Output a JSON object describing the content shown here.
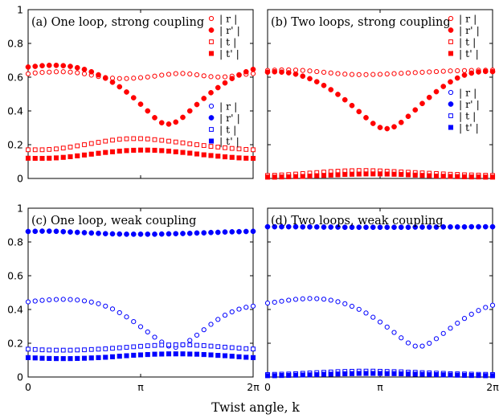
{
  "figure": {
    "xlabel": "Twist angle, k"
  },
  "chart_data": [
    {
      "type": "scatter",
      "title": "(a) One loop, strong coupling",
      "ylim": [
        0,
        1
      ],
      "yticks": [
        "0",
        "0.2",
        "0.4",
        "0.6",
        "0.8",
        "1"
      ],
      "xlim": [
        0,
        6.2832
      ],
      "xticks": [
        "0",
        "π",
        "2π"
      ],
      "color": "#ff0000",
      "legend_position": "top-right",
      "series": [
        {
          "name": "| r |",
          "marker": "open-circle",
          "values": [
            0.62,
            0.625,
            0.628,
            0.63,
            0.632,
            0.632,
            0.63,
            0.626,
            0.62,
            0.612,
            0.604,
            0.598,
            0.594,
            0.592,
            0.592,
            0.594,
            0.597,
            0.601,
            0.606,
            0.612,
            0.617,
            0.621,
            0.622,
            0.619,
            0.614,
            0.608,
            0.603,
            0.601,
            0.602,
            0.606,
            0.611,
            0.617,
            0.621
          ]
        },
        {
          "name": "| r' |",
          "marker": "filled-circle",
          "values": [
            0.66,
            0.664,
            0.668,
            0.67,
            0.67,
            0.668,
            0.664,
            0.656,
            0.646,
            0.632,
            0.614,
            0.594,
            0.57,
            0.543,
            0.512,
            0.478,
            0.44,
            0.4,
            0.36,
            0.33,
            0.322,
            0.334,
            0.362,
            0.4,
            0.438,
            0.474,
            0.508,
            0.538,
            0.566,
            0.592,
            0.614,
            0.632,
            0.646
          ]
        },
        {
          "name": "| t |",
          "marker": "open-square",
          "values": [
            0.17,
            0.17,
            0.17,
            0.172,
            0.175,
            0.18,
            0.186,
            0.193,
            0.2,
            0.207,
            0.214,
            0.221,
            0.227,
            0.232,
            0.235,
            0.236,
            0.236,
            0.234,
            0.23,
            0.226,
            0.221,
            0.216,
            0.211,
            0.205,
            0.2,
            0.195,
            0.19,
            0.186,
            0.182,
            0.178,
            0.175,
            0.172,
            0.17
          ]
        },
        {
          "name": "| t' |",
          "marker": "filled-square",
          "values": [
            0.12,
            0.119,
            0.119,
            0.12,
            0.122,
            0.125,
            0.129,
            0.134,
            0.139,
            0.144,
            0.149,
            0.154,
            0.158,
            0.162,
            0.165,
            0.167,
            0.168,
            0.168,
            0.167,
            0.165,
            0.162,
            0.158,
            0.154,
            0.15,
            0.145,
            0.14,
            0.136,
            0.132,
            0.128,
            0.125,
            0.122,
            0.12,
            0.119
          ]
        }
      ]
    },
    {
      "type": "scatter",
      "title": "(b) Two loops, strong coupling",
      "ylim": [
        0,
        1
      ],
      "yticks": [
        "0",
        "0.2",
        "0.4",
        "0.6",
        "0.8",
        "1"
      ],
      "xlim": [
        0,
        6.2832
      ],
      "xticks": [
        "0",
        "π",
        "2π"
      ],
      "color": "#ff0000",
      "legend_position": "top-right",
      "series": [
        {
          "name": "| r |",
          "marker": "open-circle",
          "values": [
            0.64,
            0.642,
            0.643,
            0.643,
            0.642,
            0.64,
            0.637,
            0.633,
            0.629,
            0.625,
            0.621,
            0.618,
            0.616,
            0.615,
            0.615,
            0.616,
            0.617,
            0.619,
            0.621,
            0.623,
            0.625,
            0.627,
            0.629,
            0.631,
            0.633,
            0.635,
            0.637,
            0.638,
            0.639,
            0.64,
            0.641,
            0.641,
            0.642
          ]
        },
        {
          "name": "| r' |",
          "marker": "filled-circle",
          "values": [
            0.63,
            0.632,
            0.63,
            0.626,
            0.618,
            0.606,
            0.591,
            0.573,
            0.551,
            0.526,
            0.498,
            0.466,
            0.432,
            0.396,
            0.36,
            0.326,
            0.302,
            0.295,
            0.306,
            0.332,
            0.368,
            0.406,
            0.444,
            0.48,
            0.514,
            0.545,
            0.572,
            0.595,
            0.612,
            0.624,
            0.631,
            0.634,
            0.633
          ]
        },
        {
          "name": "| t |",
          "marker": "open-square",
          "values": [
            0.018,
            0.019,
            0.021,
            0.023,
            0.026,
            0.029,
            0.032,
            0.035,
            0.038,
            0.041,
            0.043,
            0.045,
            0.046,
            0.047,
            0.047,
            0.046,
            0.045,
            0.043,
            0.041,
            0.039,
            0.037,
            0.035,
            0.033,
            0.031,
            0.029,
            0.027,
            0.025,
            0.024,
            0.022,
            0.021,
            0.02,
            0.019,
            0.018
          ]
        },
        {
          "name": "| t' |",
          "marker": "filled-square",
          "values": [
            0.008,
            0.008,
            0.009,
            0.01,
            0.011,
            0.012,
            0.014,
            0.016,
            0.018,
            0.02,
            0.022,
            0.024,
            0.025,
            0.026,
            0.027,
            0.027,
            0.027,
            0.026,
            0.025,
            0.024,
            0.022,
            0.02,
            0.018,
            0.016,
            0.014,
            0.013,
            0.012,
            0.011,
            0.01,
            0.009,
            0.009,
            0.008,
            0.008
          ]
        }
      ]
    },
    {
      "type": "scatter",
      "title": "(c) One loop, weak coupling",
      "ylim": [
        0,
        1
      ],
      "yticks": [
        "0",
        "0.2",
        "0.4",
        "0.6",
        "0.8",
        "1"
      ],
      "xlim": [
        0,
        6.2832
      ],
      "xticks": [
        "0",
        "π",
        "2π"
      ],
      "color": "#0000ff",
      "legend_position": "right",
      "series": [
        {
          "name": "| r |",
          "marker": "open-circle",
          "values": [
            0.445,
            0.45,
            0.454,
            0.457,
            0.459,
            0.46,
            0.459,
            0.456,
            0.451,
            0.444,
            0.434,
            0.42,
            0.403,
            0.381,
            0.356,
            0.328,
            0.298,
            0.267,
            0.236,
            0.207,
            0.183,
            0.176,
            0.19,
            0.217,
            0.248,
            0.28,
            0.312,
            0.341,
            0.366,
            0.386,
            0.402,
            0.413,
            0.42
          ]
        },
        {
          "name": "| r' |",
          "marker": "filled-circle",
          "values": [
            0.862,
            0.863,
            0.864,
            0.864,
            0.863,
            0.861,
            0.859,
            0.857,
            0.855,
            0.853,
            0.851,
            0.849,
            0.848,
            0.847,
            0.846,
            0.846,
            0.846,
            0.846,
            0.846,
            0.847,
            0.848,
            0.849,
            0.85,
            0.851,
            0.853,
            0.854,
            0.856,
            0.857,
            0.859,
            0.86,
            0.861,
            0.862,
            0.863
          ]
        },
        {
          "name": "| t |",
          "marker": "open-square",
          "values": [
            0.165,
            0.163,
            0.161,
            0.16,
            0.159,
            0.159,
            0.159,
            0.16,
            0.161,
            0.163,
            0.165,
            0.167,
            0.17,
            0.173,
            0.176,
            0.179,
            0.182,
            0.185,
            0.187,
            0.189,
            0.19,
            0.191,
            0.191,
            0.19,
            0.188,
            0.186,
            0.183,
            0.18,
            0.177,
            0.174,
            0.171,
            0.168,
            0.166
          ]
        },
        {
          "name": "| t' |",
          "marker": "filled-square",
          "values": [
            0.115,
            0.113,
            0.111,
            0.11,
            0.109,
            0.109,
            0.109,
            0.11,
            0.111,
            0.113,
            0.115,
            0.117,
            0.12,
            0.123,
            0.126,
            0.129,
            0.131,
            0.133,
            0.135,
            0.136,
            0.137,
            0.137,
            0.137,
            0.136,
            0.135,
            0.133,
            0.131,
            0.128,
            0.126,
            0.123,
            0.12,
            0.117,
            0.115
          ]
        }
      ]
    },
    {
      "type": "scatter",
      "title": "(d) Two loops, weak coupling",
      "ylim": [
        0,
        1
      ],
      "yticks": [
        "0",
        "0.2",
        "0.4",
        "0.6",
        "0.8",
        "1"
      ],
      "xlim": [
        0,
        6.2832
      ],
      "xticks": [
        "0",
        "π",
        "2π"
      ],
      "color": "#0000ff",
      "legend_position": "right",
      "series": [
        {
          "name": "| r |",
          "marker": "open-circle",
          "values": [
            0.438,
            0.443,
            0.449,
            0.455,
            0.46,
            0.463,
            0.465,
            0.464,
            0.461,
            0.455,
            0.446,
            0.434,
            0.419,
            0.401,
            0.379,
            0.354,
            0.326,
            0.296,
            0.264,
            0.232,
            0.202,
            0.183,
            0.183,
            0.2,
            0.227,
            0.258,
            0.289,
            0.319,
            0.347,
            0.372,
            0.394,
            0.412,
            0.425
          ]
        },
        {
          "name": "| r' |",
          "marker": "filled-circle",
          "values": [
            0.89,
            0.89,
            0.89,
            0.89,
            0.89,
            0.889,
            0.889,
            0.889,
            0.888,
            0.888,
            0.888,
            0.887,
            0.887,
            0.887,
            0.887,
            0.887,
            0.887,
            0.887,
            0.887,
            0.887,
            0.887,
            0.888,
            0.888,
            0.888,
            0.888,
            0.889,
            0.889,
            0.889,
            0.889,
            0.89,
            0.89,
            0.89,
            0.89
          ]
        },
        {
          "name": "| t |",
          "marker": "open-square",
          "values": [
            0.015,
            0.016,
            0.017,
            0.018,
            0.02,
            0.022,
            0.024,
            0.026,
            0.028,
            0.03,
            0.032,
            0.033,
            0.034,
            0.035,
            0.035,
            0.035,
            0.034,
            0.033,
            0.032,
            0.031,
            0.029,
            0.028,
            0.026,
            0.025,
            0.023,
            0.022,
            0.02,
            0.019,
            0.018,
            0.017,
            0.016,
            0.016,
            0.015
          ]
        },
        {
          "name": "| t' |",
          "marker": "filled-square",
          "values": [
            0.008,
            0.008,
            0.009,
            0.01,
            0.011,
            0.012,
            0.013,
            0.014,
            0.016,
            0.017,
            0.018,
            0.019,
            0.02,
            0.021,
            0.021,
            0.021,
            0.021,
            0.02,
            0.02,
            0.019,
            0.018,
            0.017,
            0.016,
            0.015,
            0.014,
            0.013,
            0.012,
            0.011,
            0.01,
            0.009,
            0.009,
            0.008,
            0.008
          ]
        }
      ]
    }
  ]
}
